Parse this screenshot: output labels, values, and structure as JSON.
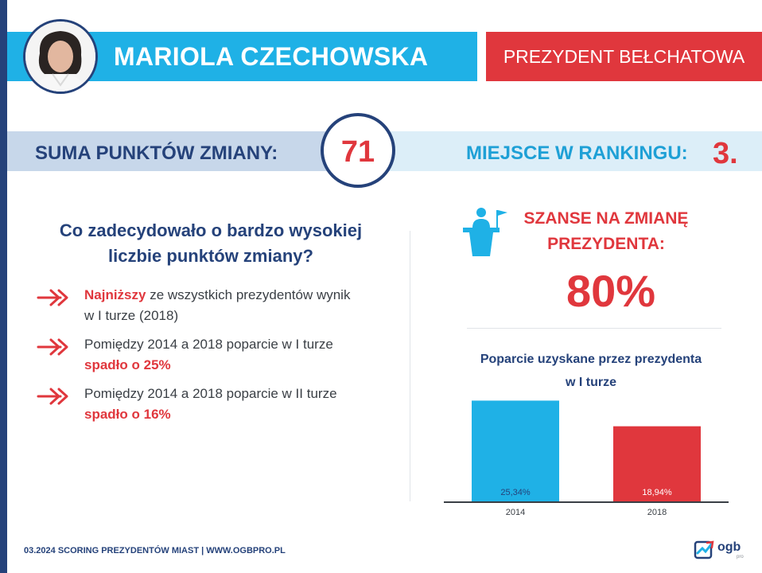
{
  "header": {
    "name": "MARIOLA CZECHOWSKA",
    "title": "PREZYDENT BEŁCHATOWA"
  },
  "score": {
    "label": "SUMA PUNKTÓW ZMIANY:",
    "value": "71",
    "rank_label": "MIEJSCE W RANKINGU:",
    "rank_value": "3."
  },
  "reasons": {
    "question_line1": "Co zadecydowało o bardzo wysokiej",
    "question_line2": "liczbie punktów zmiany?",
    "items": [
      {
        "highlight": "Najniższy",
        "text": " ze wszystkich prezydentów wynik w I turze (2018)"
      },
      {
        "text": "Pomiędzy 2014 a 2018 poparcie w I turze ",
        "highlight": "spadło o 25%"
      },
      {
        "text": "Pomiędzy 2014 a 2018 poparcie w II turze ",
        "highlight": "spadło o 16%"
      }
    ]
  },
  "chances": {
    "label_line1": "SZANSE NA ZMIANĘ",
    "label_line2": "PREZYDENTA:",
    "value": "80%"
  },
  "chart_title_line1": "Poparcie uzyskane przez prezydenta",
  "chart_title_line2": "w I turze",
  "chart_data": {
    "type": "bar",
    "categories": [
      "2014",
      "2018"
    ],
    "values": [
      25.34,
      18.94
    ],
    "value_labels": [
      "25,34%",
      "18,94%"
    ],
    "colors": [
      "#1fb1e6",
      "#e0373d"
    ],
    "ylim": [
      0,
      28
    ]
  },
  "footer": {
    "text": "03.2024 SCORING PREZYDENTÓW MIAST | WWW.OGBPRO.PL"
  },
  "logo": {
    "text": "ogb",
    "sub": "pro"
  },
  "colors": {
    "navy": "#25427a",
    "blue": "#1fb1e6",
    "red": "#e0373d"
  }
}
